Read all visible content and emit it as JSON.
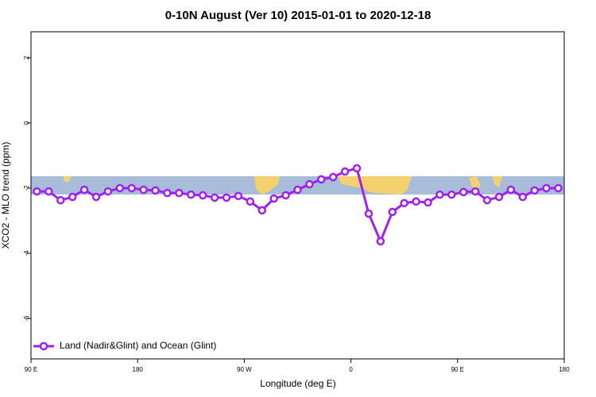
{
  "chart_data": {
    "type": "line",
    "title": "0-10N August (Ver 10)   2015-01-01 to 2020-12-18",
    "x_label": "Longitude (deg E)",
    "y_label": "XCO2 - MLO trend (ppm)",
    "x": [
      95,
      105,
      115,
      125,
      135,
      145,
      155,
      165,
      175,
      185,
      195,
      205,
      215,
      225,
      235,
      245,
      255,
      265,
      275,
      285,
      295,
      305,
      315,
      325,
      335,
      345,
      355,
      365,
      375,
      385,
      395,
      405,
      415,
      425,
      435,
      445,
      455,
      465,
      475,
      485,
      495,
      505,
      515,
      525,
      535
    ],
    "series": [
      {
        "name": "Land (Nadir&Glint) and Ocean (Glint)",
        "color": "#a020f0",
        "values": [
          -2.1,
          -2.1,
          -2.37,
          -2.27,
          -2.05,
          -2.27,
          -2.1,
          -2.0,
          -2.0,
          -2.05,
          -2.07,
          -2.15,
          -2.15,
          -2.2,
          -2.22,
          -2.29,
          -2.29,
          -2.24,
          -2.41,
          -2.68,
          -2.32,
          -2.22,
          -2.05,
          -1.88,
          -1.73,
          -1.66,
          -1.49,
          -1.39,
          -2.78,
          -3.63,
          -2.73,
          -2.46,
          -2.41,
          -2.44,
          -2.2,
          -2.2,
          -2.12,
          -2.1,
          -2.37,
          -2.27,
          -2.05,
          -2.27,
          -2.07,
          -2.0,
          -2.0
        ]
      }
    ],
    "xlim": [
      90,
      540
    ],
    "xticks": [
      {
        "value": 90,
        "label": "90 E"
      },
      180,
      {
        "value": 270,
        "label": "90 W"
      },
      {
        "value": 360,
        "label": "0"
      },
      {
        "value": 450,
        "label": "90 E"
      },
      {
        "value": 540,
        "label": "180"
      }
    ],
    "ylim": [
      -7.24,
      2.8
    ],
    "yticks": [
      2,
      0,
      -2,
      -4,
      -6
    ],
    "legend": "bottom-left"
  }
}
